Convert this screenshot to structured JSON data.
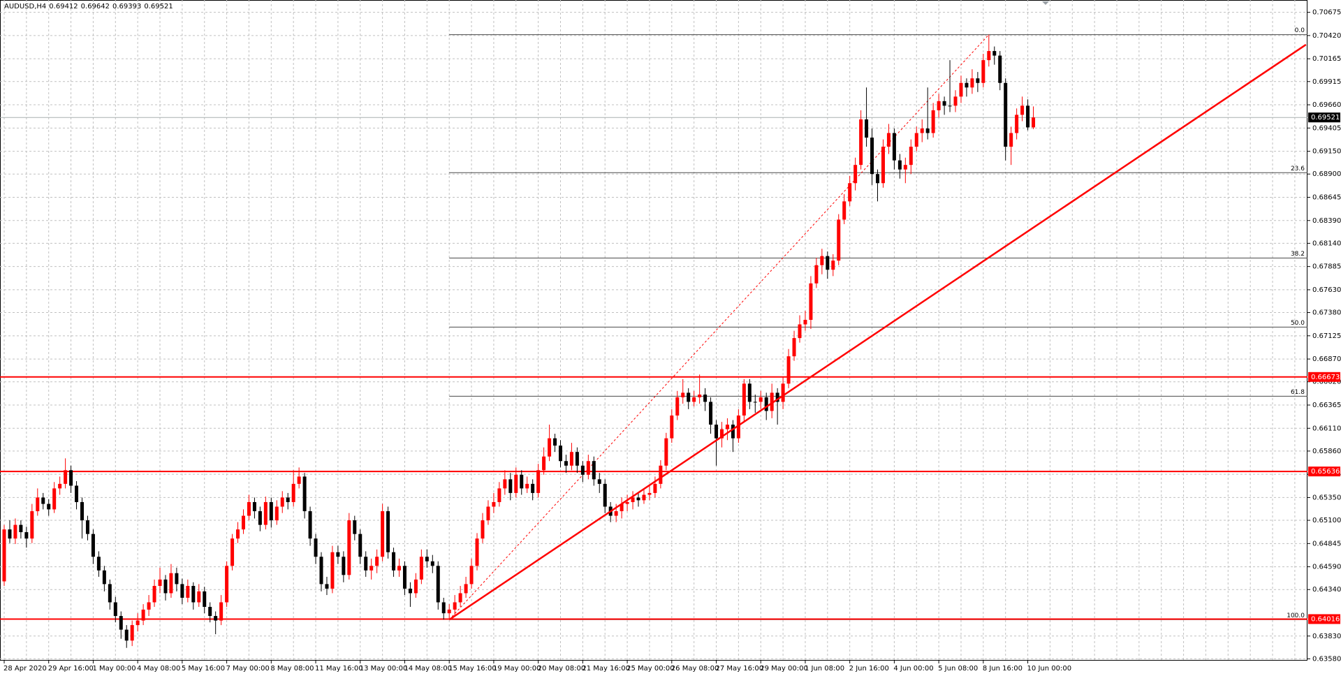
{
  "chart_data": {
    "type": "candlestick",
    "title": "AUDUSD,H4",
    "categories": [
      "28 Apr 2020",
      null,
      null,
      null,
      null,
      null,
      null,
      null,
      "29 Apr 16:00",
      null,
      null,
      null,
      null,
      null,
      null,
      null,
      "1 May 00:00",
      null,
      null,
      null,
      null,
      null,
      null,
      null,
      "4 May 08:00",
      null,
      null,
      null,
      null,
      null,
      null,
      null,
      "5 May 16:00",
      null,
      null,
      null,
      null,
      null,
      null,
      null,
      "7 May 00:00",
      null,
      null,
      null,
      null,
      null,
      null,
      null,
      "8 May 08:00",
      null,
      null,
      null,
      null,
      null,
      null,
      null,
      "11 May 16:00",
      null,
      null,
      null,
      null,
      null,
      null,
      null,
      "13 May 00:00",
      null,
      null,
      null,
      null,
      null,
      null,
      null,
      "14 May 08:00",
      null,
      null,
      null,
      null,
      null,
      null,
      null,
      "15 May 16:00",
      null,
      null,
      null,
      null,
      null,
      null,
      null,
      "19 May 00:00",
      null,
      null,
      null,
      null,
      null,
      null,
      null,
      "20 May 08:00",
      null,
      null,
      null,
      null,
      null,
      null,
      null,
      "21 May 16:00",
      null,
      null,
      null,
      null,
      null,
      null,
      null,
      "25 May 00:00",
      null,
      null,
      null,
      null,
      null,
      null,
      null,
      "26 May 08:00",
      null,
      null,
      null,
      null,
      null,
      null,
      null,
      "27 May 16:00",
      null,
      null,
      null,
      null,
      null,
      null,
      null,
      "29 May 00:00",
      null,
      null,
      null,
      null,
      null,
      null,
      null,
      "1 Jun 08:00",
      null,
      null,
      null,
      null,
      null,
      null,
      null,
      "2 Jun 16:00",
      null,
      null,
      null,
      null,
      null,
      null,
      null,
      "4 Jun 00:00",
      null,
      null,
      null,
      null,
      null,
      null,
      null,
      "5 Jun 08:00",
      null,
      null,
      null,
      null,
      null,
      null,
      null,
      "8 Jun 16:00",
      null,
      null,
      null,
      null,
      null,
      null,
      null,
      "10 Jun 00:00",
      null
    ],
    "open": [
      0.6443,
      0.65,
      0.649,
      0.6505,
      0.6497,
      0.649,
      0.652,
      0.6535,
      0.6528,
      0.6522,
      0.6545,
      0.655,
      0.6565,
      0.6548,
      0.653,
      0.651,
      0.6495,
      0.647,
      0.6455,
      0.644,
      0.642,
      0.6405,
      0.639,
      0.6378,
      0.6395,
      0.64,
      0.6412,
      0.642,
      0.6438,
      0.6445,
      0.643,
      0.6452,
      0.644,
      0.6425,
      0.6438,
      0.642,
      0.6432,
      0.6415,
      0.6405,
      0.64,
      0.642,
      0.646,
      0.649,
      0.65,
      0.6515,
      0.653,
      0.652,
      0.6505,
      0.653,
      0.651,
      0.6525,
      0.6535,
      0.653,
      0.655,
      0.6558,
      0.652,
      0.649,
      0.647,
      0.644,
      0.6435,
      0.6475,
      0.647,
      0.645,
      0.651,
      0.6495,
      0.647,
      0.6455,
      0.646,
      0.647,
      0.652,
      0.6475,
      0.6455,
      0.646,
      0.6435,
      0.643,
      0.6445,
      0.647,
      0.6465,
      0.646,
      0.642,
      0.6408,
      0.6412,
      0.642,
      0.643,
      0.644,
      0.646,
      0.649,
      0.651,
      0.6525,
      0.653,
      0.6545,
      0.6555,
      0.654,
      0.656,
      0.6545,
      0.655,
      0.654,
      0.6565,
      0.658,
      0.66,
      0.6592,
      0.6575,
      0.657,
      0.6585,
      0.657,
      0.656,
      0.6575,
      0.6555,
      0.655,
      0.6525,
      0.6515,
      0.652,
      0.6528,
      0.653,
      0.6535,
      0.6532,
      0.6538,
      0.654,
      0.655,
      0.657,
      0.66,
      0.6625,
      0.6645,
      0.665,
      0.664,
      0.6645,
      0.6648,
      0.664,
      0.6615,
      0.66,
      0.661,
      0.6615,
      0.66,
      0.6625,
      0.666,
      0.664,
      0.664,
      0.6645,
      0.663,
      0.665,
      0.664,
      0.666,
      0.669,
      0.671,
      0.6725,
      0.673,
      0.677,
      0.679,
      0.68,
      0.6785,
      0.6795,
      0.684,
      0.686,
      0.688,
      0.69,
      0.695,
      0.693,
      0.689,
      0.688,
      0.692,
      0.6935,
      0.6905,
      0.6895,
      0.69,
      0.692,
      0.6935,
      0.694,
      0.6935,
      0.696,
      0.697,
      0.6965,
      0.6965,
      0.6975,
      0.699,
      0.6985,
      0.6995,
      0.699,
      0.7015,
      0.7025,
      0.702,
      0.699,
      0.692,
      0.6935,
      0.6955,
      0.6965,
      0.69412
    ],
    "high": [
      0.6505,
      0.651,
      0.6512,
      0.651,
      0.6503,
      0.6528,
      0.6545,
      0.654,
      0.6533,
      0.6552,
      0.6558,
      0.6578,
      0.657,
      0.6553,
      0.6535,
      0.6515,
      0.65,
      0.6476,
      0.646,
      0.6445,
      0.6426,
      0.641,
      0.6395,
      0.64,
      0.6408,
      0.6418,
      0.6428,
      0.6445,
      0.6458,
      0.645,
      0.6462,
      0.6458,
      0.6446,
      0.6445,
      0.6442,
      0.644,
      0.6437,
      0.642,
      0.641,
      0.6428,
      0.6465,
      0.6495,
      0.6508,
      0.6522,
      0.6538,
      0.6535,
      0.6525,
      0.6536,
      0.6535,
      0.6532,
      0.6542,
      0.654,
      0.6565,
      0.6568,
      0.6562,
      0.6525,
      0.6495,
      0.6475,
      0.6448,
      0.6482,
      0.6482,
      0.6476,
      0.6518,
      0.6515,
      0.65,
      0.6476,
      0.6468,
      0.6478,
      0.6528,
      0.6525,
      0.648,
      0.6468,
      0.6465,
      0.6442,
      0.6452,
      0.6478,
      0.6478,
      0.6472,
      0.6465,
      0.6425,
      0.6418,
      0.6428,
      0.6438,
      0.6448,
      0.6468,
      0.6496,
      0.6518,
      0.6532,
      0.654,
      0.6552,
      0.6565,
      0.6562,
      0.6568,
      0.6565,
      0.6558,
      0.6555,
      0.6572,
      0.659,
      0.6615,
      0.6605,
      0.6598,
      0.6582,
      0.6595,
      0.659,
      0.6575,
      0.6582,
      0.658,
      0.6562,
      0.6555,
      0.653,
      0.6528,
      0.6535,
      0.6538,
      0.6542,
      0.654,
      0.6545,
      0.6548,
      0.6558,
      0.6576,
      0.6606,
      0.6632,
      0.6652,
      0.6665,
      0.6655,
      0.6652,
      0.667,
      0.6655,
      0.6645,
      0.662,
      0.6618,
      0.6622,
      0.662,
      0.6632,
      0.6665,
      0.6665,
      0.6648,
      0.6652,
      0.665,
      0.666,
      0.6655,
      0.6668,
      0.6698,
      0.6718,
      0.6735,
      0.674,
      0.6778,
      0.6798,
      0.6808,
      0.6805,
      0.6802,
      0.6846,
      0.6868,
      0.6888,
      0.6908,
      0.696,
      0.6985,
      0.694,
      0.6895,
      0.6928,
      0.6945,
      0.694,
      0.6912,
      0.6908,
      0.6928,
      0.6942,
      0.695,
      0.6985,
      0.6968,
      0.6978,
      0.6975,
      0.7015,
      0.6982,
      0.6998,
      0.6995,
      0.7005,
      0.7002,
      0.7022,
      0.7043,
      0.703,
      0.7025,
      0.6995,
      0.6942,
      0.6962,
      0.6975,
      0.6972,
      0.69642
    ],
    "low": [
      0.6438,
      0.6485,
      0.6484,
      0.649,
      0.648,
      0.6485,
      0.6515,
      0.6522,
      0.6515,
      0.6518,
      0.6538,
      0.6545,
      0.654,
      0.6522,
      0.649,
      0.6488,
      0.6462,
      0.6448,
      0.6432,
      0.6412,
      0.6398,
      0.638,
      0.637,
      0.6372,
      0.6388,
      0.6395,
      0.6405,
      0.6415,
      0.643,
      0.6422,
      0.6425,
      0.6432,
      0.6418,
      0.642,
      0.6412,
      0.6415,
      0.6408,
      0.6398,
      0.6385,
      0.6395,
      0.6415,
      0.6455,
      0.6485,
      0.6495,
      0.651,
      0.6512,
      0.6498,
      0.65,
      0.6502,
      0.6505,
      0.6518,
      0.6522,
      0.6525,
      0.6545,
      0.6512,
      0.6482,
      0.6462,
      0.6432,
      0.6428,
      0.643,
      0.6462,
      0.6442,
      0.6445,
      0.6488,
      0.6462,
      0.6448,
      0.6445,
      0.6452,
      0.6465,
      0.6468,
      0.6448,
      0.6448,
      0.6428,
      0.6415,
      0.6425,
      0.644,
      0.6458,
      0.6452,
      0.6412,
      0.6401,
      0.6401,
      0.6405,
      0.6415,
      0.6425,
      0.6435,
      0.6455,
      0.6485,
      0.6505,
      0.6518,
      0.6525,
      0.6538,
      0.6532,
      0.6535,
      0.6538,
      0.654,
      0.6532,
      0.6535,
      0.656,
      0.6575,
      0.6585,
      0.6568,
      0.6562,
      0.6565,
      0.6562,
      0.6552,
      0.6555,
      0.6548,
      0.654,
      0.6518,
      0.6508,
      0.6508,
      0.6512,
      0.652,
      0.6522,
      0.6525,
      0.6528,
      0.6532,
      0.6535,
      0.6545,
      0.6565,
      0.6595,
      0.662,
      0.6638,
      0.6632,
      0.6635,
      0.6638,
      0.663,
      0.6605,
      0.657,
      0.659,
      0.6598,
      0.6585,
      0.6595,
      0.6618,
      0.6632,
      0.6628,
      0.6632,
      0.662,
      0.6622,
      0.6615,
      0.6632,
      0.6655,
      0.6685,
      0.6705,
      0.6718,
      0.672,
      0.6765,
      0.678,
      0.6775,
      0.6778,
      0.679,
      0.6835,
      0.6855,
      0.6872,
      0.6895,
      0.692,
      0.6878,
      0.686,
      0.6875,
      0.6912,
      0.6895,
      0.6885,
      0.688,
      0.689,
      0.6915,
      0.6925,
      0.6928,
      0.693,
      0.6952,
      0.6955,
      0.6958,
      0.6958,
      0.6968,
      0.6975,
      0.6978,
      0.698,
      0.6985,
      0.7008,
      0.701,
      0.6982,
      0.6905,
      0.69,
      0.6928,
      0.6948,
      0.6938,
      0.69393
    ],
    "close": [
      0.65,
      0.649,
      0.6505,
      0.6497,
      0.649,
      0.652,
      0.6535,
      0.6528,
      0.6522,
      0.6545,
      0.655,
      0.6565,
      0.6548,
      0.653,
      0.651,
      0.6495,
      0.647,
      0.6455,
      0.644,
      0.642,
      0.6405,
      0.639,
      0.6378,
      0.6395,
      0.64,
      0.6412,
      0.642,
      0.6438,
      0.6445,
      0.643,
      0.6452,
      0.644,
      0.6425,
      0.6438,
      0.642,
      0.6432,
      0.6415,
      0.6405,
      0.64,
      0.642,
      0.646,
      0.649,
      0.65,
      0.6515,
      0.653,
      0.652,
      0.6505,
      0.653,
      0.651,
      0.6525,
      0.6535,
      0.653,
      0.655,
      0.6558,
      0.652,
      0.649,
      0.647,
      0.644,
      0.6435,
      0.6475,
      0.647,
      0.645,
      0.651,
      0.6495,
      0.647,
      0.6455,
      0.646,
      0.647,
      0.652,
      0.6475,
      0.6455,
      0.646,
      0.6435,
      0.643,
      0.6445,
      0.647,
      0.6465,
      0.646,
      0.642,
      0.6408,
      0.6412,
      0.642,
      0.643,
      0.644,
      0.646,
      0.649,
      0.651,
      0.6525,
      0.653,
      0.6545,
      0.6555,
      0.654,
      0.656,
      0.6545,
      0.655,
      0.654,
      0.6565,
      0.658,
      0.66,
      0.6592,
      0.6575,
      0.657,
      0.6585,
      0.657,
      0.656,
      0.6575,
      0.6555,
      0.655,
      0.6525,
      0.6515,
      0.652,
      0.6528,
      0.653,
      0.6535,
      0.6532,
      0.6538,
      0.654,
      0.655,
      0.657,
      0.66,
      0.6625,
      0.6645,
      0.665,
      0.664,
      0.6645,
      0.6648,
      0.664,
      0.6615,
      0.66,
      0.661,
      0.6615,
      0.66,
      0.6625,
      0.666,
      0.664,
      0.664,
      0.6645,
      0.663,
      0.665,
      0.664,
      0.666,
      0.669,
      0.671,
      0.6725,
      0.673,
      0.677,
      0.679,
      0.68,
      0.6785,
      0.6795,
      0.684,
      0.686,
      0.688,
      0.69,
      0.695,
      0.693,
      0.689,
      0.688,
      0.692,
      0.6935,
      0.6905,
      0.6895,
      0.69,
      0.692,
      0.6935,
      0.694,
      0.6935,
      0.696,
      0.697,
      0.6965,
      0.6965,
      0.6975,
      0.699,
      0.6985,
      0.6995,
      0.699,
      0.7015,
      0.7025,
      0.702,
      0.699,
      0.692,
      0.6935,
      0.6955,
      0.6965,
      0.69412,
      0.69521
    ],
    "ylim": [
      0.6356,
      0.7081
    ],
    "yticks": [
      0.70675,
      {
        "value": 0.7042,
        "label": "0.70420"
      },
      0.70165,
      0.69915,
      {
        "value": 0.6966,
        "label": "0.69660"
      },
      0.69405,
      {
        "value": 0.6915,
        "label": "0.69150"
      },
      {
        "value": 0.689,
        "label": "0.68900"
      },
      0.68645,
      {
        "value": 0.6839,
        "label": "0.68390"
      },
      {
        "value": 0.6814,
        "label": "0.68140"
      },
      0.67885,
      {
        "value": 0.6763,
        "label": "0.67630"
      },
      {
        "value": 0.6738,
        "label": "0.67380"
      },
      0.67125,
      {
        "value": 0.6687,
        "label": "0.66870"
      },
      {
        "value": 0.6662,
        "label": "0.66620"
      },
      0.66365,
      {
        "value": 0.6611,
        "label": "0.66110"
      },
      {
        "value": 0.6586,
        "label": "0.65860"
      },
      0.65605,
      {
        "value": 0.6535,
        "label": "0.65350"
      },
      {
        "value": 0.651,
        "label": "0.65100"
      },
      0.64845,
      {
        "value": 0.6459,
        "label": "0.64590"
      },
      {
        "value": 0.6434,
        "label": "0.64340"
      },
      {
        "value": 0.6383,
        "label": "0.63830"
      },
      {
        "value": 0.6358,
        "label": "0.63580"
      }
    ],
    "grid": true,
    "bull_color": "#ff0000",
    "bear_color": "#000000",
    "horizontal_lines": [
      {
        "value": 0.66673,
        "color": "#ff0000"
      },
      {
        "value": 0.65636,
        "color": "#ff0000"
      },
      {
        "value": 0.64016,
        "color": "#ff0000"
      }
    ],
    "bid_line_color": "#a8b0b0",
    "fibonacci": {
      "color": "#4a4a4a",
      "levels": [
        {
          "label": "0.0",
          "value": 0.7043
        },
        {
          "label": "23.6",
          "value": 0.68915
        },
        {
          "label": "38.2",
          "value": 0.67978
        },
        {
          "label": "50.0",
          "value": 0.6722
        },
        {
          "label": "61.8",
          "value": 0.66462
        },
        {
          "label": "100.0",
          "value": 0.6401
        }
      ]
    },
    "fib_base": {
      "x": [
        80,
        177
      ],
      "y": [
        0.6401,
        0.7043
      ],
      "color": "#ff0000"
    },
    "trendline": {
      "x": [
        80,
        234
      ],
      "y": [
        0.6401,
        0.7032
      ],
      "color": "#ff0000"
    }
  }
}
